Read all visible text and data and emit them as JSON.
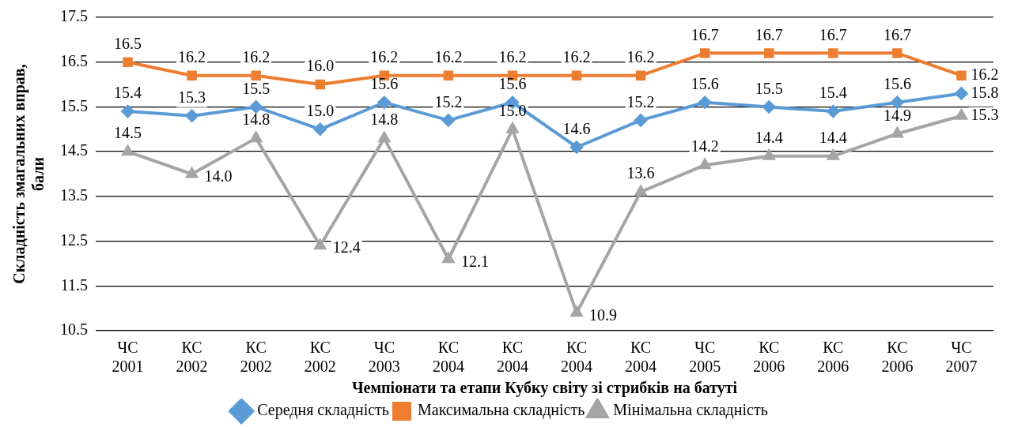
{
  "chart_data": {
    "type": "line",
    "xlabel": "Чемпіонати та етапи Кубку світу зі стрибків на батуті",
    "ylabel": "Складність змагальних вправ, бали",
    "categories": [
      "ЧС 2001",
      "КС 2002",
      "КС 2002",
      "КС 2002",
      "ЧС 2003",
      "КС 2004",
      "КС 2004",
      "КС 2004",
      "КС 2004",
      "ЧС 2005",
      "КС 2006",
      "КС 2006",
      "КС 2006",
      "ЧС 2007"
    ],
    "series": [
      {
        "name": "Середня складність",
        "color": "#5b9bd5",
        "marker": "diamond",
        "values": [
          15.4,
          15.3,
          15.5,
          15.0,
          15.6,
          15.2,
          15.6,
          14.6,
          15.2,
          15.6,
          15.5,
          15.4,
          15.6,
          15.8
        ],
        "value_labels": [
          "15.4",
          "15.3",
          "15.5",
          "15.0",
          "15.6",
          "15.2",
          "15.6",
          "14.6",
          "15.2",
          "15.6",
          "15.5",
          "15.4",
          "15.6",
          "15.8"
        ]
      },
      {
        "name": "Максимальна складність",
        "color": "#ed7d31",
        "marker": "square",
        "values": [
          16.5,
          16.2,
          16.2,
          16.0,
          16.2,
          16.2,
          16.2,
          16.2,
          16.2,
          16.7,
          16.7,
          16.7,
          16.7,
          16.2
        ],
        "value_labels": [
          "16.5",
          "16.2",
          "16.2",
          "16.0",
          "16.2",
          "16.2",
          "16.2",
          "16.2",
          "16.2",
          "16.7",
          "16.7",
          "16.7",
          "16.7",
          "16.2"
        ]
      },
      {
        "name": "Мінімальна складність",
        "color": "#a5a5a5",
        "marker": "triangle",
        "values": [
          14.5,
          14.0,
          14.8,
          12.4,
          14.8,
          12.1,
          15.0,
          10.9,
          13.6,
          14.2,
          14.4,
          14.4,
          14.9,
          15.3
        ],
        "value_labels": [
          "14.5",
          "14.0",
          "14.8",
          "12.4",
          "14.8",
          "12.1",
          "15.0",
          "10.9",
          "13.6",
          "14.2",
          "14.4",
          "14.4",
          "14.9",
          "15.3"
        ]
      }
    ],
    "ylim": [
      10.5,
      17.5
    ],
    "yticks": [
      10.5,
      11.5,
      12.5,
      13.5,
      14.5,
      15.5,
      16.5,
      17.5
    ],
    "grid": "y",
    "legend": "bottom"
  }
}
